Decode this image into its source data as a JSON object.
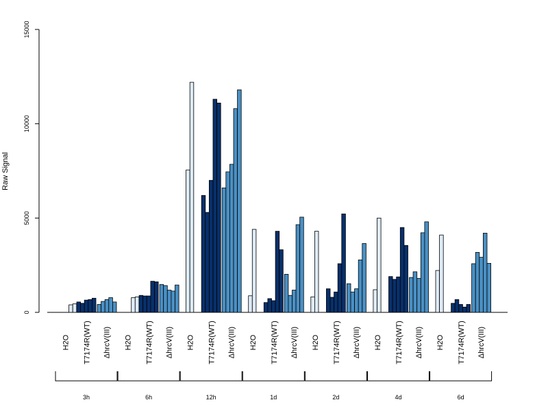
{
  "chart_data": {
    "type": "bar",
    "ylabel": "Raw Signal",
    "ylim": [
      0,
      15000
    ],
    "yticks": [
      "0",
      "5000",
      "10000",
      "15000"
    ],
    "ytick_values": [
      0,
      5000,
      10000,
      15000
    ],
    "grid": false,
    "colors": {
      "H2O": "#deebf7",
      "T7174R(WT)": "#08306b",
      "ΔhrcV(III)": "#4a90c4"
    },
    "groups": [
      {
        "label": "3h",
        "conditions": [
          {
            "name": "H2O",
            "values": [
              0,
              400,
              450
            ]
          },
          {
            "name": "T7174R(WT)",
            "values": [
              550,
              480,
              650,
              680,
              750
            ]
          },
          {
            "name": "ΔhrcV(III)",
            "values": [
              420,
              580,
              680,
              780,
              550
            ]
          }
        ]
      },
      {
        "label": "6h",
        "conditions": [
          {
            "name": "H2O",
            "values": [
              0,
              780,
              820
            ]
          },
          {
            "name": "T7174R(WT)",
            "values": [
              900,
              870,
              870,
              1650,
              1620
            ]
          },
          {
            "name": "ΔhrcV(III)",
            "values": [
              1480,
              1420,
              1180,
              1130,
              1450
            ]
          }
        ]
      },
      {
        "label": "12h",
        "conditions": [
          {
            "name": "H2O",
            "values": [
              7550,
              12200
            ]
          },
          {
            "name": "T7174R(WT)",
            "values": [
              6200,
              5300,
              7000,
              11300,
              11100
            ]
          },
          {
            "name": "ΔhrcV(III)",
            "values": [
              6600,
              7450,
              7850,
              10800,
              11800
            ]
          }
        ]
      },
      {
        "label": "1d",
        "conditions": [
          {
            "name": "H2O",
            "values": [
              880,
              4400
            ]
          },
          {
            "name": "T7174R(WT)",
            "values": [
              520,
              730,
              620,
              4300,
              3320
            ]
          },
          {
            "name": "ΔhrcV(III)",
            "values": [
              2020,
              900,
              1180,
              4650,
              5050
            ]
          }
        ]
      },
      {
        "label": "2d",
        "conditions": [
          {
            "name": "H2O",
            "values": [
              820,
              4300
            ]
          },
          {
            "name": "T7174R(WT)",
            "values": [
              1250,
              800,
              1080,
              2580,
              5220
            ]
          },
          {
            "name": "ΔhrcV(III)",
            "values": [
              1520,
              1080,
              1250,
              2780,
              3650
            ]
          }
        ]
      },
      {
        "label": "4d",
        "conditions": [
          {
            "name": "H2O",
            "values": [
              1200,
              5000
            ]
          },
          {
            "name": "T7174R(WT)",
            "values": [
              1900,
              1750,
              1880,
              4500,
              3550
            ]
          },
          {
            "name": "ΔhrcV(III)",
            "values": [
              1850,
              2150,
              1800,
              4220,
              4800
            ]
          }
        ]
      },
      {
        "label": "6d",
        "conditions": [
          {
            "name": "H2O",
            "values": [
              2220,
              4100
            ]
          },
          {
            "name": "T7174R(WT)",
            "values": [
              480,
              680,
              420,
              280,
              420
            ]
          },
          {
            "name": "ΔhrcV(III)",
            "values": [
              2580,
              3180,
              2920,
              4200,
              2600
            ]
          }
        ]
      }
    ]
  }
}
